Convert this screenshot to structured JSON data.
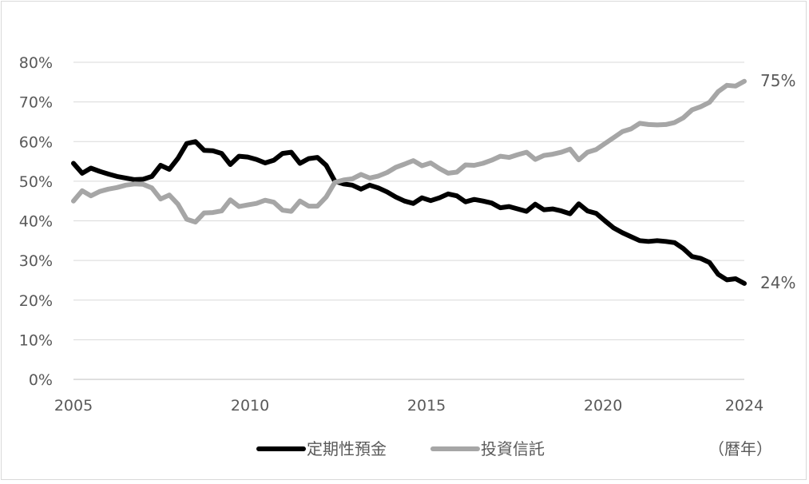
{
  "chart_data": {
    "type": "line",
    "x_start": 2005,
    "x_end": 2024,
    "x_ticks": [
      "2005",
      "2010",
      "2015",
      "2020",
      "2024"
    ],
    "ylim": [
      0,
      80
    ],
    "y_ticks": [
      "0%",
      "10%",
      "20%",
      "30%",
      "40%",
      "50%",
      "60%",
      "70%",
      "80%"
    ],
    "grid": true,
    "unit_label": "（暦年）",
    "legend_position": "bottom",
    "series": [
      {
        "name": "定期性預金",
        "color": "#000000",
        "end_label": "24%",
        "values": [
          54.5,
          52,
          53.3,
          52.5,
          51.8,
          51.2,
          50.8,
          50.4,
          50.5,
          51.2,
          54,
          53,
          55.8,
          59.5,
          60,
          57.8,
          57.7,
          57,
          54.2,
          56.3,
          56.1,
          55.5,
          54.6,
          55.3,
          57,
          57.3,
          54.5,
          55.7,
          56,
          54,
          50,
          49.3,
          49,
          48,
          49,
          48.3,
          47.3,
          46,
          45,
          44.4,
          45.8,
          45.1,
          45.8,
          46.8,
          46.3,
          44.8,
          45.4,
          45,
          44.5,
          43.3,
          43.6,
          43,
          42.4,
          44.2,
          42.8,
          43,
          42.5,
          41.8,
          44.3,
          42.5,
          41.9,
          40,
          38.2,
          37,
          36,
          35,
          34.8,
          35,
          34.8,
          34.5,
          33,
          31,
          30.5,
          29.5,
          26.5,
          25.1,
          25.4,
          24.2
        ]
      },
      {
        "name": "投資信託",
        "color": "#a6a6a6",
        "end_label": "75%",
        "values": [
          45,
          47.6,
          46.3,
          47.4,
          48,
          48.4,
          49,
          49.3,
          49.2,
          48.3,
          45.5,
          46.5,
          44.2,
          40.4,
          39.7,
          42,
          42.1,
          42.5,
          45.3,
          43.6,
          44,
          44.4,
          45.2,
          44.7,
          42.7,
          42.4,
          45,
          43.7,
          43.7,
          46,
          49.7,
          50.3,
          50.6,
          51.7,
          50.8,
          51.3,
          52.2,
          53.5,
          54.3,
          55.2,
          53.9,
          54.6,
          53.2,
          52,
          52.3,
          54.1,
          54,
          54.5,
          55.3,
          56.3,
          56,
          56.7,
          57.3,
          55.5,
          56.5,
          56.8,
          57.3,
          58.1,
          55.4,
          57.3,
          58,
          59.5,
          61,
          62.5,
          63.2,
          64.6,
          64.3,
          64.2,
          64.3,
          64.8,
          66,
          68,
          68.8,
          69.9,
          72.6,
          74.2,
          74,
          75.2
        ]
      }
    ]
  }
}
